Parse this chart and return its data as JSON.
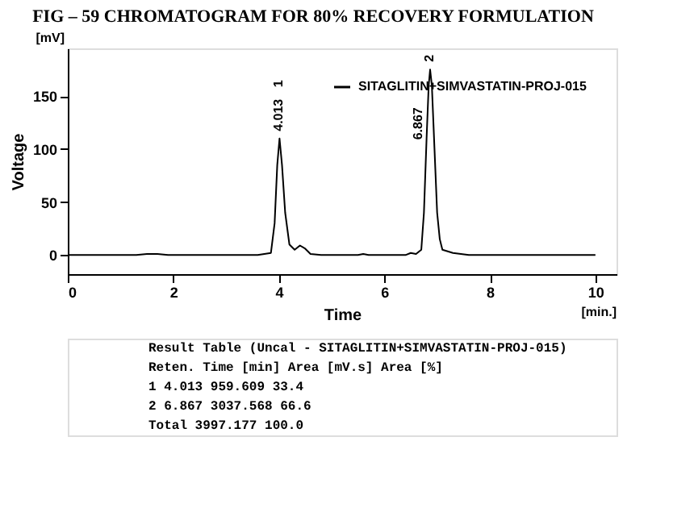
{
  "chart_data": {
    "type": "line",
    "title": "FIG – 59  CHROMATOGRAM FOR 80% RECOVERY FORMULATION",
    "xlabel": "Time",
    "ylabel": "Voltage",
    "xlim": [
      0,
      10.4
    ],
    "xticks": [
      0,
      2,
      4,
      6,
      8,
      10
    ],
    "ylim": [
      -18,
      195
    ],
    "yticks": [
      0,
      50,
      100,
      150
    ],
    "grid": false,
    "legend": "top right",
    "marker": "none",
    "line_style": "solid",
    "series": [
      {
        "name": "SITAGLITIN+SIMVASTATIN-PROJ-015",
        "color": "#000000",
        "x": [
          0,
          1.3,
          1.5,
          1.7,
          1.9,
          3.6,
          3.85,
          3.92,
          3.97,
          4.013,
          4.06,
          4.12,
          4.2,
          4.3,
          4.4,
          4.5,
          4.6,
          4.8,
          5.5,
          5.6,
          5.7,
          6.4,
          6.5,
          6.6,
          6.7,
          6.75,
          6.8,
          6.84,
          6.867,
          6.9,
          6.95,
          7.0,
          7.05,
          7.1,
          7.3,
          7.6,
          10
        ],
        "values": [
          0,
          0,
          1,
          1,
          0,
          0,
          2,
          30,
          85,
          110,
          85,
          40,
          10,
          5,
          9,
          6,
          1,
          0,
          0,
          1,
          0,
          0,
          2,
          1,
          5,
          40,
          110,
          160,
          175,
          160,
          100,
          40,
          15,
          5,
          2,
          0,
          0
        ]
      }
    ],
    "annotations": [
      {
        "text": "4.013",
        "x": 4.013,
        "y": 110
      },
      {
        "text": "6.867",
        "x": 6.867,
        "y": 175
      },
      "[mV]",
      "[min.]",
      "1",
      "2",
      "Result Table (Uncal - SITAGLITIN+SIMVASTATIN-PROJ-015)",
      "     Reten. Time [min]   Area [mV.s]   Area [%]",
      "  1       4.013          959.609       33.4",
      "  2       6.867         3037.568       66.6",
      "          Total         3997.177      100.0"
    ]
  }
}
